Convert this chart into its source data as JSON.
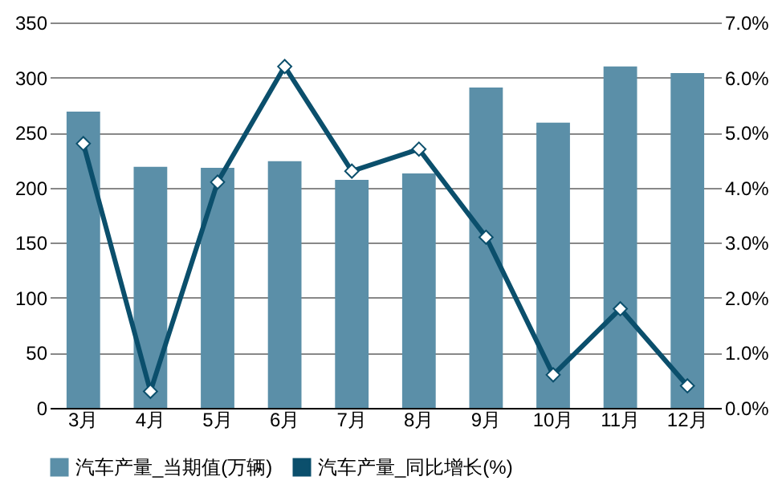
{
  "chart_data": {
    "type": "bar",
    "categories": [
      "3月",
      "4月",
      "5月",
      "6月",
      "7月",
      "8月",
      "9月",
      "10月",
      "11月",
      "12月"
    ],
    "series": [
      {
        "name": "汽车产量_当期值(万辆)",
        "color": "#5b8fa8",
        "values": [
          269,
          219,
          218,
          224,
          207,
          213,
          291,
          259,
          310,
          304
        ]
      },
      {
        "name": "汽车产量_同比增长(%)",
        "type": "line",
        "axis": "y2",
        "color": "#0b4f6c",
        "marker": "diamond",
        "values": [
          4.8,
          0.3,
          4.1,
          6.2,
          4.3,
          4.7,
          3.1,
          0.6,
          1.8,
          0.4
        ]
      }
    ],
    "ylim": [
      0,
      350
    ],
    "yticks": [
      0,
      50,
      100,
      150,
      200,
      250,
      300,
      350
    ],
    "y2lim": [
      0,
      7
    ],
    "y2ticks": [
      {
        "value": 0,
        "label": "0.0%"
      },
      {
        "value": 1,
        "label": "1.0%"
      },
      {
        "value": 2,
        "label": "2.0%"
      },
      {
        "value": 3,
        "label": "3.0%"
      },
      {
        "value": 4,
        "label": "4.0%"
      },
      {
        "value": 5,
        "label": "5.0%"
      },
      {
        "value": 6,
        "label": "6.0%"
      },
      {
        "value": 7,
        "label": "7.0%"
      }
    ],
    "grid": "y",
    "legend": "bottom"
  }
}
